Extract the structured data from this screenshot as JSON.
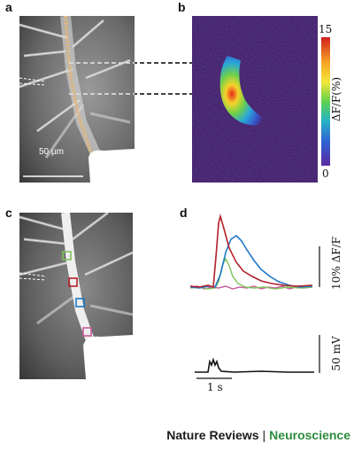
{
  "panels": {
    "a": {
      "letter": "a",
      "scalebar_label": "50 µm"
    },
    "b": {
      "letter": "b",
      "colorbar_max": "15",
      "colorbar_min": "0",
      "colorbar_label": "ΔF/F(%)"
    },
    "c": {
      "letter": "c"
    },
    "d": {
      "letter": "d",
      "fluor_scale_label": "10% ΔF/F",
      "voltage_scale_label": "50 mV",
      "time_scale_label": "1 s"
    }
  },
  "roi_colors": [
    "#7fc25a",
    "#b3202a",
    "#1f78c8",
    "#c75a9a"
  ],
  "footer": {
    "journal": "Nature Reviews",
    "separator": "|",
    "section": "Neuroscience"
  },
  "colors": {
    "journal": "#1a1a1a",
    "section": "#2e8b3e",
    "dendrite_dye": "#e3b77a"
  }
}
